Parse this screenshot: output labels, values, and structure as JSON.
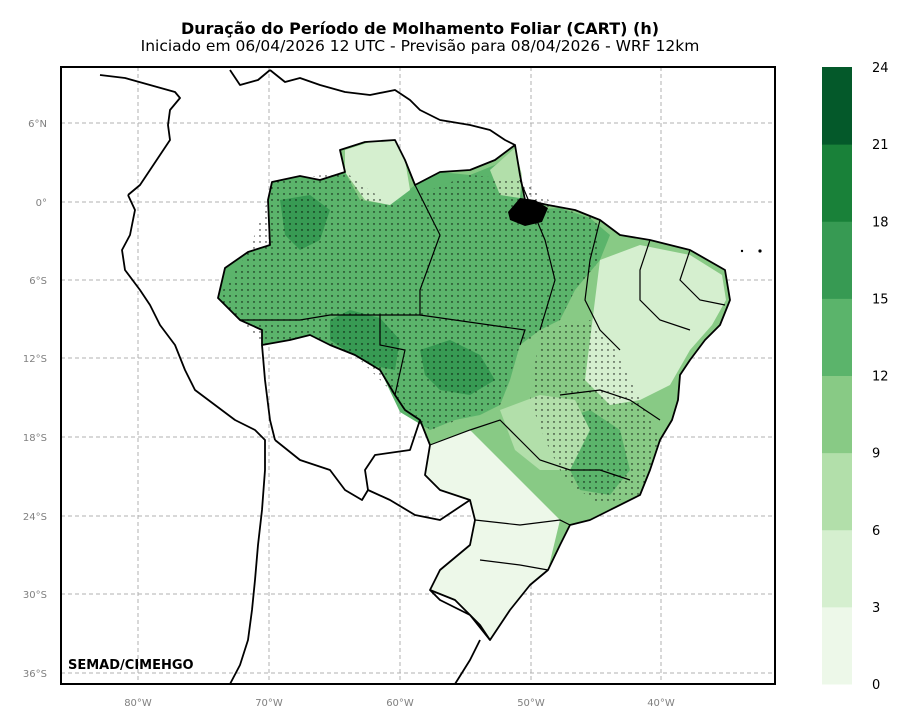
{
  "title": "Duração do Período de Molhamento Foliar (CART) (h)",
  "subtitle": "Iniciado em 06/04/2026 12 UTC - Previsão para 08/04/2026 - WRF 12km",
  "credit": "SEMAD/CIMEHGO",
  "lat_ticks": [
    "6°N",
    "0°",
    "6°S",
    "12°S",
    "18°S",
    "24°S",
    "30°S",
    "36°S"
  ],
  "lon_ticks": [
    "80°W",
    "70°W",
    "60°W",
    "50°W",
    "40°W"
  ],
  "colorbar": {
    "ticks": [
      "0",
      "3",
      "6",
      "9",
      "12",
      "15",
      "18",
      "21",
      "24"
    ],
    "colors": [
      "#edf8e9",
      "#d5efcf",
      "#b2dfaa",
      "#88ca85",
      "#5bb46b",
      "#379a53",
      "#198139",
      "#04592a"
    ]
  },
  "extent": {
    "lon_min": -86,
    "lon_max": -31,
    "lat_min": -36.5,
    "lat_max": 8.5
  }
}
